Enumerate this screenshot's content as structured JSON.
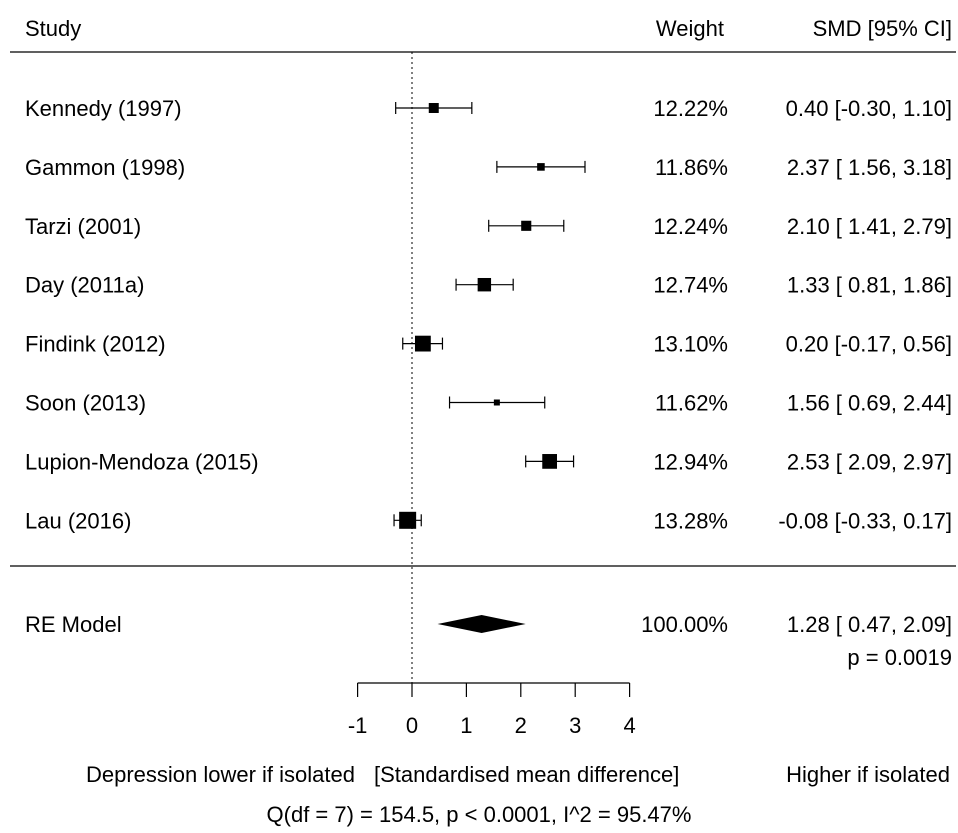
{
  "chart_data": {
    "type": "forest",
    "headers": {
      "study": "Study",
      "weight": "Weight",
      "effect": "SMD [95% CI]"
    },
    "studies": [
      {
        "label": "Kennedy (1997)",
        "weight_pct": 12.22,
        "weight_text": "12.22%",
        "smd": 0.4,
        "ci_low": -0.3,
        "ci_high": 1.1,
        "ci_text": "0.40 [-0.30, 1.10]"
      },
      {
        "label": "Gammon (1998)",
        "weight_pct": 11.86,
        "weight_text": "11.86%",
        "smd": 2.37,
        "ci_low": 1.56,
        "ci_high": 3.18,
        "ci_text": "2.37 [ 1.56, 3.18]"
      },
      {
        "label": "Tarzi  (2001)",
        "weight_pct": 12.24,
        "weight_text": "12.24%",
        "smd": 2.1,
        "ci_low": 1.41,
        "ci_high": 2.79,
        "ci_text": "2.10 [ 1.41, 2.79]"
      },
      {
        "label": "Day (2011a)",
        "weight_pct": 12.74,
        "weight_text": "12.74%",
        "smd": 1.33,
        "ci_low": 0.81,
        "ci_high": 1.86,
        "ci_text": "1.33 [ 0.81, 1.86]"
      },
      {
        "label": "Findink (2012)",
        "weight_pct": 13.1,
        "weight_text": "13.10%",
        "smd": 0.2,
        "ci_low": -0.17,
        "ci_high": 0.56,
        "ci_text": "0.20 [-0.17, 0.56]"
      },
      {
        "label": "Soon (2013)",
        "weight_pct": 11.62,
        "weight_text": "11.62%",
        "smd": 1.56,
        "ci_low": 0.69,
        "ci_high": 2.44,
        "ci_text": "1.56 [ 0.69, 2.44]"
      },
      {
        "label": "Lupion-Mendoza (2015)",
        "weight_pct": 12.94,
        "weight_text": "12.94%",
        "smd": 2.53,
        "ci_low": 2.09,
        "ci_high": 2.97,
        "ci_text": "2.53 [ 2.09, 2.97]"
      },
      {
        "label": "Lau (2016)",
        "weight_pct": 13.28,
        "weight_text": "13.28%",
        "smd": -0.08,
        "ci_low": -0.33,
        "ci_high": 0.17,
        "ci_text": "-0.08 [-0.33, 0.17]"
      }
    ],
    "summary": {
      "label": "RE Model",
      "weight_text": "100.00%",
      "smd": 1.28,
      "ci_low": 0.47,
      "ci_high": 2.09,
      "ci_text": "1.28 [ 0.47, 2.09]",
      "p_text": "p = 0.0019"
    },
    "x_axis": {
      "range": [
        -1,
        4
      ],
      "ticks": [
        -1,
        0,
        1,
        2,
        3,
        4
      ],
      "tick_labels": [
        "-1",
        "0",
        "1",
        "2",
        "3",
        "4"
      ],
      "reference_line": 0
    },
    "direction_labels": {
      "left": "Depression lower if isolated",
      "center": "[Standardised mean difference]",
      "right": "Higher if isolated"
    },
    "heterogeneity": "Q(df = 7) = 154.5, p < 0.0001, I^2 = 95.47%"
  }
}
